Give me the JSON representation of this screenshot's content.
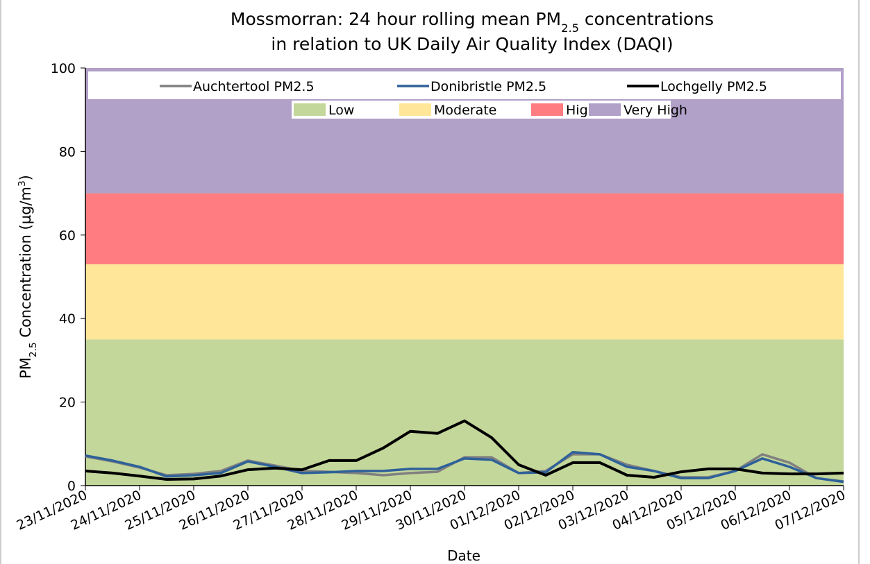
{
  "chart_data": {
    "type": "line",
    "title": [
      [
        {
          "text": "Mossmorran: 24 hour rolling mean PM"
        },
        {
          "text": "2.5",
          "shift": "sub"
        },
        {
          "text": " concentrations"
        }
      ],
      [
        {
          "text": "in relation to UK Daily Air Quality Index (DAQI)"
        }
      ]
    ],
    "ylabel": [
      {
        "text": "PM"
      },
      {
        "text": "2.5",
        "shift": "sub"
      },
      {
        "text": " Concentration (µg/m"
      },
      {
        "text": "3",
        "shift": "sup"
      },
      {
        "text": ")"
      }
    ],
    "xlabel": "Date",
    "xlim": [
      0,
      14
    ],
    "xticks": [
      {
        "value": 0,
        "label": "23/11/2020"
      },
      {
        "value": 1,
        "label": "24/11/2020"
      },
      {
        "value": 2,
        "label": "25/11/2020"
      },
      {
        "value": 3,
        "label": "26/11/2020"
      },
      {
        "value": 4,
        "label": "27/11/2020"
      },
      {
        "value": 5,
        "label": "28/11/2020"
      },
      {
        "value": 6,
        "label": "29/11/2020"
      },
      {
        "value": 7,
        "label": "30/11/2020"
      },
      {
        "value": 8,
        "label": "01/12/2020"
      },
      {
        "value": 9,
        "label": "02/12/2020"
      },
      {
        "value": 10,
        "label": "03/12/2020"
      },
      {
        "value": 11,
        "label": "04/12/2020"
      },
      {
        "value": 12,
        "label": "05/12/2020"
      },
      {
        "value": 13,
        "label": "06/12/2020"
      },
      {
        "value": 14,
        "label": "07/12/2020"
      }
    ],
    "ylim": [
      0,
      100
    ],
    "yticks": [
      0,
      20,
      40,
      60,
      80,
      100
    ],
    "bands": [
      {
        "name": "Low",
        "from": 0,
        "to": 35,
        "color": "#c4d79b"
      },
      {
        "name": "Moderate",
        "from": 35,
        "to": 53,
        "color": "#ffe699"
      },
      {
        "name": "High",
        "from": 53,
        "to": 70,
        "color": "#ff7c80"
      },
      {
        "name": "Very High",
        "from": 70,
        "to": 100,
        "color": "#b1a0c7"
      }
    ],
    "x": [
      0,
      0.5,
      1,
      1.5,
      2,
      2.5,
      3,
      3.5,
      4,
      4.5,
      5,
      5.5,
      6,
      6.5,
      7,
      7.5,
      8,
      8.5,
      9,
      9.5,
      10,
      10.5,
      11,
      11.5,
      12,
      12.5,
      13,
      13.5,
      14
    ],
    "series": [
      {
        "name": "Auchtertool PM2.5",
        "color": "#808080",
        "width": 3.5,
        "values": [
          7,
          5.8,
          4.3,
          2.5,
          2.8,
          3.5,
          6,
          4.8,
          3.5,
          3.3,
          3,
          2.5,
          3,
          3.3,
          6.8,
          6.8,
          3,
          3.5,
          7.5,
          7.5,
          5,
          3.5,
          2,
          2,
          3.5,
          7.5,
          5.5,
          1.8,
          1
        ]
      },
      {
        "name": "Donibristle PM2.5",
        "color": "#2e6199",
        "width": 3.5,
        "values": [
          7.2,
          6,
          4.5,
          2.2,
          2.5,
          3,
          5.8,
          4.5,
          3,
          3.2,
          3.5,
          3.5,
          4,
          4,
          6.5,
          6.2,
          3,
          3.2,
          8,
          7.5,
          4.5,
          3.5,
          1.8,
          1.8,
          3.5,
          6.5,
          4.5,
          1.8,
          0.9
        ]
      },
      {
        "name": "Lochgelly PM2.5",
        "color": "#000000",
        "width": 4,
        "values": [
          3.5,
          3,
          2.3,
          1.5,
          1.6,
          2.3,
          3.8,
          4.2,
          3.8,
          6,
          6,
          9,
          13,
          12.5,
          15.5,
          11.5,
          5,
          2.5,
          5.5,
          5.5,
          2.5,
          2,
          3.3,
          4,
          4,
          3,
          2.8,
          2.8,
          3
        ]
      }
    ]
  }
}
